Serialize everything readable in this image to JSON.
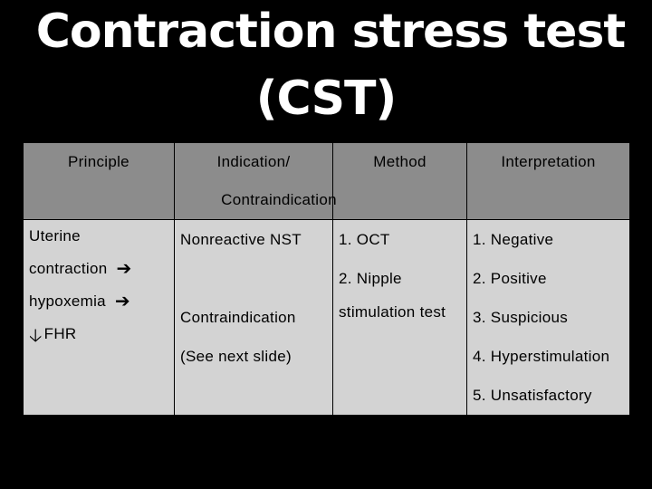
{
  "title": {
    "line1": "Contraction stress test",
    "line2": "(CST)"
  },
  "table": {
    "headers": {
      "principle": "Principle",
      "indication_line1": "Indication/",
      "indication_line2": "Contraindication",
      "method": "Method",
      "interpretation": "Interpretation"
    },
    "principle": {
      "line1": "Uterine",
      "line2": "contraction",
      "line3": "hypoxemia",
      "line4": "FHR",
      "right_arrow_icon": "right-arrow-icon",
      "down_arrow_icon": "down-arrow-icon"
    },
    "indication": {
      "item1": "Nonreactive NST",
      "item2": "Contraindication",
      "item3": "(See next slide)"
    },
    "method": {
      "item1": "1. OCT",
      "item2": "2. Nipple",
      "item3": "stimulation test"
    },
    "interpretation": {
      "items": [
        "1. Negative",
        "2. Positive",
        "3. Suspicious",
        "4. Hyperstimulation",
        "5. Unsatisfactory"
      ]
    }
  },
  "colors": {
    "background": "#000000",
    "header_fill": "#8c8c8c",
    "body_fill": "#d3d3d3",
    "title_text": "#ffffff"
  }
}
